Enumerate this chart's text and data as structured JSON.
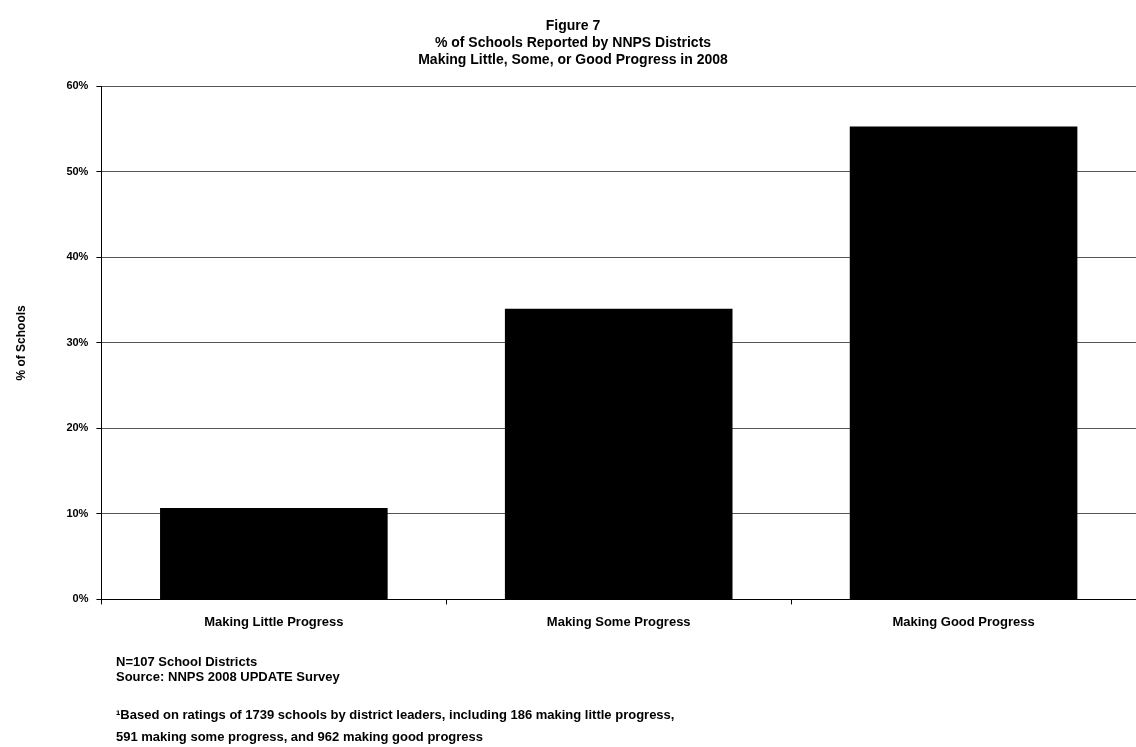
{
  "chart_data": {
    "type": "bar",
    "title": "Figure 7",
    "subtitle": "% of Schools Reported by NNPS Districts\nMaking Little, Some, or Good Progress in 2008",
    "ylabel": "% of Schools",
    "categories": [
      "Making Little Progress",
      "Making Some Progress",
      "Making Good Progress"
    ],
    "values": [
      10.7,
      34,
      55.3
    ],
    "color": "#000000",
    "ylim": [
      0,
      60
    ],
    "yticks": [
      {
        "value": 0,
        "label": "0%"
      },
      {
        "value": 10,
        "label": "10%"
      },
      {
        "value": 20,
        "label": "20%"
      },
      {
        "value": 30,
        "label": "30%"
      },
      {
        "value": 40,
        "label": "40%"
      },
      {
        "value": 50,
        "label": "50%"
      },
      {
        "value": 60,
        "label": "60%"
      }
    ],
    "grid": "y",
    "legend": false,
    "annotations": [
      "N=107 School Districts",
      "Source: NNPS 2008 UPDATE Survey",
      "¹Based on ratings of 1739 schools by district leaders, including 186 making little progress,\n591 making some progress, and 962 making good progress"
    ]
  }
}
